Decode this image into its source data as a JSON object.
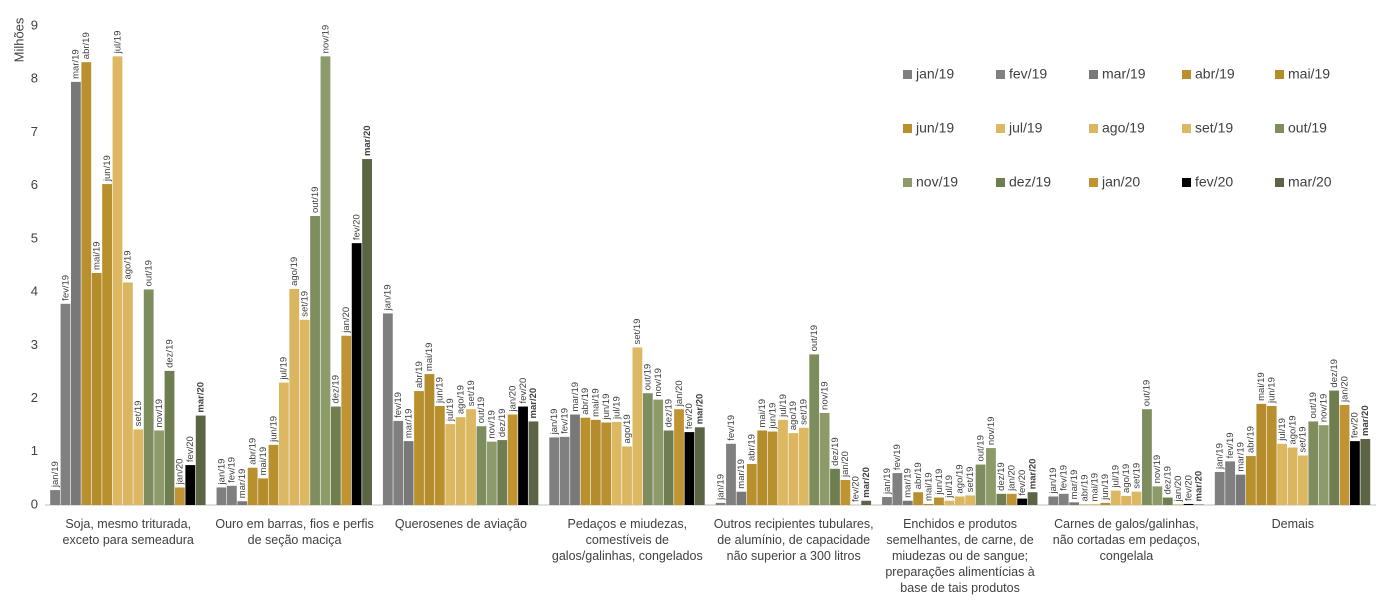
{
  "chart_data": {
    "type": "bar",
    "y_label": "Milhões",
    "categories": [
      "Soja, mesmo triturada, exceto para semeadura",
      "Ouro em barras, fios e perfis de seção maciça",
      "Querosenes de aviação",
      "Pedaços e miudezas, comestíveis de galos/galinhas, congelados",
      "Outros recipientes tubulares, de alumínio, de capacidade não superior a 300 litros",
      "Enchidos e produtos semelhantes, de carne, de miudezas ou de sangue; preparações alimentícias à base de tais produtos",
      "Carnes de galos/galinhas, não cortadas em pedaços, congelala",
      "Demais"
    ],
    "series": [
      {
        "name": "jan/19",
        "color": "#7f7f7f",
        "values": [
          0.28,
          0.33,
          3.6,
          1.27,
          0.04,
          0.15,
          0.16,
          0.62
        ]
      },
      {
        "name": "fev/19",
        "color": "#808080",
        "values": [
          3.78,
          0.36,
          1.58,
          1.28,
          1.15,
          0.6,
          0.21,
          0.82
        ]
      },
      {
        "name": "mar/19",
        "color": "#787878",
        "values": [
          7.95,
          0.07,
          1.2,
          1.7,
          0.25,
          0.08,
          0.05,
          0.57
        ]
      },
      {
        "name": "abr/19",
        "color": "#b8902d",
        "values": [
          8.32,
          0.7,
          2.14,
          1.64,
          0.77,
          0.24,
          0.01,
          0.92
        ]
      },
      {
        "name": "mai/19",
        "color": "#b48c2b",
        "values": [
          4.36,
          0.5,
          2.46,
          1.6,
          1.4,
          0.02,
          0.01,
          1.9
        ]
      },
      {
        "name": "jun/19",
        "color": "#b8902d",
        "values": [
          6.03,
          1.13,
          1.86,
          1.55,
          1.38,
          0.14,
          0.04,
          1.86
        ]
      },
      {
        "name": "jul/19",
        "color": "#dcb862",
        "values": [
          8.43,
          2.3,
          1.52,
          1.56,
          1.6,
          0.08,
          0.27,
          1.15
        ]
      },
      {
        "name": "ago/19",
        "color": "#d9b65f",
        "values": [
          4.18,
          4.06,
          1.65,
          1.1,
          1.35,
          0.16,
          0.17,
          1.08
        ]
      },
      {
        "name": "set/19",
        "color": "#dcb862",
        "values": [
          1.42,
          3.48,
          1.8,
          2.96,
          1.45,
          0.18,
          0.25,
          0.93
        ]
      },
      {
        "name": "out/19",
        "color": "#7e8d5e",
        "values": [
          4.05,
          5.43,
          1.48,
          2.1,
          2.83,
          0.76,
          1.8,
          1.57
        ]
      },
      {
        "name": "nov/19",
        "color": "#8d9b6b",
        "values": [
          1.4,
          8.43,
          1.19,
          1.98,
          1.73,
          1.07,
          0.35,
          1.5
        ]
      },
      {
        "name": "dez/19",
        "color": "#6f7e50",
        "values": [
          2.52,
          1.85,
          1.22,
          1.4,
          0.68,
          0.21,
          0.14,
          2.15
        ]
      },
      {
        "name": "jan/20",
        "color": "#c09432",
        "values": [
          0.33,
          3.18,
          1.7,
          1.8,
          0.47,
          0.21,
          0.01,
          1.88
        ]
      },
      {
        "name": "fev/20",
        "color": "#000000",
        "values": [
          0.75,
          4.92,
          1.85,
          1.37,
          0,
          0.12,
          0.02,
          1.2
        ]
      },
      {
        "name": "mar/20",
        "color": "#5b6445",
        "values": [
          1.68,
          6.5,
          1.57,
          1.46,
          0.08,
          0.24,
          0.01,
          1.24
        ]
      }
    ],
    "ylim": [
      0,
      9
    ],
    "yticks": [
      0,
      1,
      2,
      3,
      4,
      5,
      6,
      7,
      8,
      9
    ],
    "grid": false
  }
}
